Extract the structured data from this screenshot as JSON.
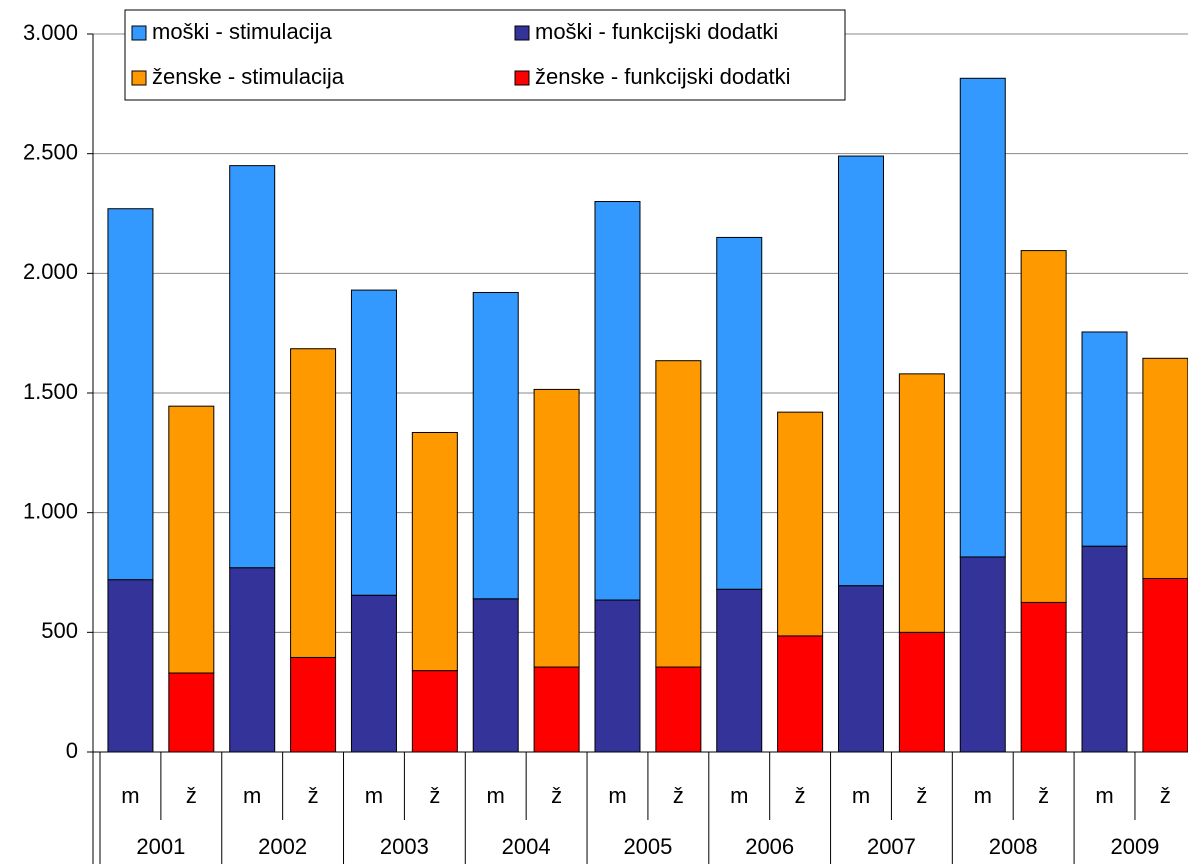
{
  "chart_data": {
    "type": "stacked_bar",
    "categories": [
      "m",
      "ž",
      "m",
      "ž",
      "m",
      "ž",
      "m",
      "ž",
      "m",
      "ž",
      "m",
      "ž",
      "m",
      "ž",
      "m",
      "ž",
      "m",
      "ž"
    ],
    "category_groups": [
      "2001",
      "2002",
      "2003",
      "2004",
      "2005",
      "2006",
      "2007",
      "2008",
      "2009"
    ],
    "series": [
      {
        "name": "moški - funkcijski dodatki",
        "color": "#333399",
        "values": [
          720,
          null,
          770,
          null,
          655,
          null,
          640,
          null,
          635,
          null,
          680,
          null,
          695,
          null,
          815,
          null,
          860,
          null
        ]
      },
      {
        "name": "moški - stimulacija",
        "color": "#3399ff",
        "values": [
          1550,
          null,
          1680,
          null,
          1275,
          null,
          1280,
          null,
          1665,
          null,
          1470,
          null,
          1795,
          null,
          2000,
          null,
          895,
          null
        ]
      },
      {
        "name": "ženske - funkcijski dodatki",
        "color": "#ff0000",
        "values": [
          null,
          330,
          null,
          395,
          null,
          340,
          null,
          355,
          null,
          355,
          null,
          485,
          null,
          500,
          null,
          625,
          null,
          725
        ]
      },
      {
        "name": "ženske - stimulacija",
        "color": "#ff9900",
        "values": [
          null,
          1115,
          null,
          1290,
          null,
          995,
          null,
          1160,
          null,
          1280,
          null,
          935,
          null,
          1080,
          null,
          1470,
          null,
          920
        ]
      }
    ],
    "ylim": [
      0,
      3000
    ],
    "yticks": [
      0,
      500,
      {
        "value": 1000,
        "label": "1.000"
      },
      {
        "value": 1500,
        "label": "1.500"
      },
      {
        "value": 2000,
        "label": "2.000"
      },
      {
        "value": 2500,
        "label": "2.500"
      },
      {
        "value": 3000,
        "label": "3.000"
      }
    ],
    "grid": true
  }
}
